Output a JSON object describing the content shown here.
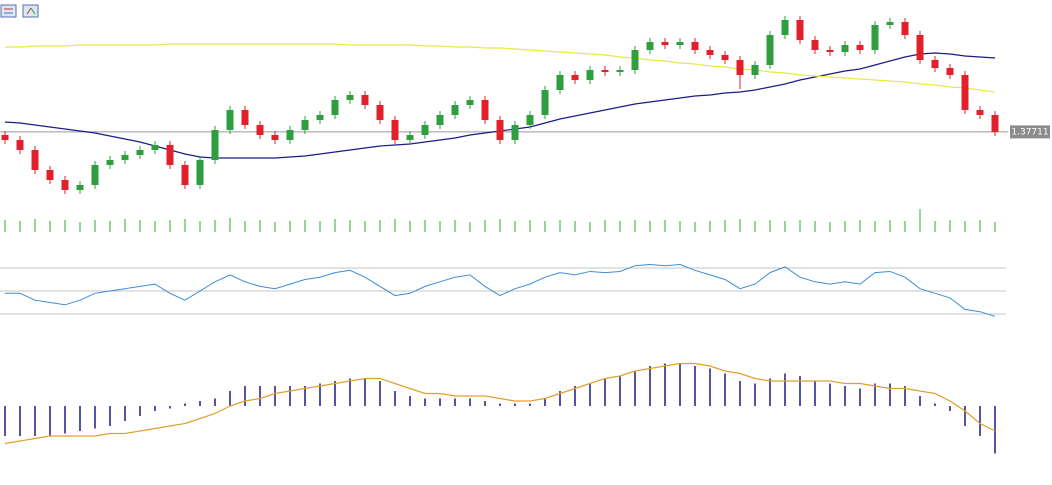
{
  "chart_data": {
    "type": "candlestick",
    "candles": [
      [
        1.3768,
        1.3772,
        1.3759,
        1.3763
      ],
      [
        1.3763,
        1.3767,
        1.3749,
        1.3753
      ],
      [
        1.3753,
        1.3757,
        1.3729,
        1.3733
      ],
      [
        1.3733,
        1.3737,
        1.3719,
        1.3723
      ],
      [
        1.3723,
        1.3727,
        1.3709,
        1.3713
      ],
      [
        1.3713,
        1.3722,
        1.3709,
        1.3718
      ],
      [
        1.3718,
        1.3742,
        1.3714,
        1.3738
      ],
      [
        1.3738,
        1.3747,
        1.3734,
        1.3743
      ],
      [
        1.3743,
        1.3752,
        1.3739,
        1.3748
      ],
      [
        1.3748,
        1.3757,
        1.3744,
        1.3753
      ],
      [
        1.3753,
        1.3762,
        1.3749,
        1.3758
      ],
      [
        1.3758,
        1.3762,
        1.3734,
        1.3738
      ],
      [
        1.3738,
        1.3742,
        1.3714,
        1.3718
      ],
      [
        1.3718,
        1.3747,
        1.3714,
        1.3743
      ],
      [
        1.3743,
        1.3777,
        1.3739,
        1.3773
      ],
      [
        1.3773,
        1.3797,
        1.3769,
        1.3793
      ],
      [
        1.3793,
        1.3797,
        1.3774,
        1.3778
      ],
      [
        1.3778,
        1.3782,
        1.3764,
        1.3768
      ],
      [
        1.3768,
        1.3772,
        1.3759,
        1.3763
      ],
      [
        1.3763,
        1.3777,
        1.3759,
        1.3773
      ],
      [
        1.3773,
        1.3787,
        1.3769,
        1.3783
      ],
      [
        1.3783,
        1.3792,
        1.3779,
        1.3788
      ],
      [
        1.3788,
        1.3807,
        1.3784,
        1.3803
      ],
      [
        1.3803,
        1.3812,
        1.3799,
        1.3808
      ],
      [
        1.3808,
        1.3812,
        1.3794,
        1.3798
      ],
      [
        1.3798,
        1.3802,
        1.3779,
        1.3783
      ],
      [
        1.3783,
        1.3787,
        1.3759,
        1.3763
      ],
      [
        1.3763,
        1.3772,
        1.3759,
        1.3768
      ],
      [
        1.3768,
        1.3782,
        1.3764,
        1.3778
      ],
      [
        1.3778,
        1.3792,
        1.3774,
        1.3788
      ],
      [
        1.3788,
        1.3802,
        1.3784,
        1.3798
      ],
      [
        1.3798,
        1.3807,
        1.3794,
        1.3803
      ],
      [
        1.3803,
        1.3807,
        1.3779,
        1.3783
      ],
      [
        1.3783,
        1.3787,
        1.3759,
        1.3763
      ],
      [
        1.3763,
        1.3782,
        1.3759,
        1.3778
      ],
      [
        1.3778,
        1.3792,
        1.3774,
        1.3788
      ],
      [
        1.3788,
        1.3817,
        1.3784,
        1.3813
      ],
      [
        1.3813,
        1.3832,
        1.3809,
        1.3828
      ],
      [
        1.3828,
        1.3832,
        1.3819,
        1.3823
      ],
      [
        1.3823,
        1.3837,
        1.3819,
        1.3833
      ],
      [
        1.3833,
        1.3837,
        1.3827,
        1.3831
      ],
      [
        1.3831,
        1.3837,
        1.3827,
        1.3833
      ],
      [
        1.3833,
        1.3857,
        1.3829,
        1.3853
      ],
      [
        1.3853,
        1.3865,
        1.3849,
        1.3861
      ],
      [
        1.3861,
        1.3865,
        1.3854,
        1.3858
      ],
      [
        1.3858,
        1.3865,
        1.3854,
        1.3861
      ],
      [
        1.3861,
        1.3865,
        1.3849,
        1.3853
      ],
      [
        1.3853,
        1.3857,
        1.3844,
        1.3848
      ],
      [
        1.3848,
        1.3852,
        1.3839,
        1.3843
      ],
      [
        1.3843,
        1.3847,
        1.3814,
        1.3828
      ],
      [
        1.3828,
        1.3842,
        1.3824,
        1.3838
      ],
      [
        1.3838,
        1.3872,
        1.3834,
        1.3868
      ],
      [
        1.3868,
        1.3887,
        1.3864,
        1.3883
      ],
      [
        1.3883,
        1.3887,
        1.3859,
        1.3863
      ],
      [
        1.3863,
        1.3867,
        1.3849,
        1.3853
      ],
      [
        1.3853,
        1.3857,
        1.3847,
        1.3851
      ],
      [
        1.3851,
        1.3862,
        1.3847,
        1.3858
      ],
      [
        1.3858,
        1.3862,
        1.3849,
        1.3853
      ],
      [
        1.3853,
        1.3882,
        1.3849,
        1.3878
      ],
      [
        1.3878,
        1.3885,
        1.3874,
        1.3881
      ],
      [
        1.3881,
        1.3885,
        1.3864,
        1.3868
      ],
      [
        1.3868,
        1.3872,
        1.3839,
        1.3843
      ],
      [
        1.3843,
        1.3847,
        1.3831,
        1.3835
      ],
      [
        1.3835,
        1.3839,
        1.3824,
        1.3828
      ],
      [
        1.3828,
        1.3832,
        1.3789,
        1.3793
      ],
      [
        1.3793,
        1.3797,
        1.3784,
        1.3788
      ],
      [
        1.3788,
        1.3792,
        1.3767,
        1.37711
      ]
    ],
    "ylim": [
      1.3698,
      1.3903
    ],
    "up_color": "#2e9e3e",
    "down_color": "#e0202a",
    "last_price": 1.37711,
    "series": [
      {
        "color": "#1b1b8a",
        "values": [
          1.3781,
          1.378,
          1.3778,
          1.3776,
          1.3774,
          1.3772,
          1.377,
          1.3767,
          1.3764,
          1.3761,
          1.3757,
          1.3753,
          1.3749,
          1.3746,
          1.3745,
          1.3745,
          1.3745,
          1.3745,
          1.3745,
          1.3746,
          1.3747,
          1.3749,
          1.3751,
          1.3753,
          1.3755,
          1.3757,
          1.3758,
          1.3759,
          1.3761,
          1.3763,
          1.3765,
          1.3768,
          1.377,
          1.3772,
          1.3774,
          1.3776,
          1.378,
          1.3784,
          1.3787,
          1.379,
          1.3793,
          1.3796,
          1.3799,
          1.3801,
          1.3803,
          1.3805,
          1.3807,
          1.3808,
          1.381,
          1.3811,
          1.3813,
          1.3816,
          1.3819,
          1.3823,
          1.3826,
          1.3829,
          1.3832,
          1.3834,
          1.3838,
          1.3842,
          1.3846,
          1.3849,
          1.385,
          1.3849,
          1.3847,
          1.3846,
          1.3845
        ]
      },
      {
        "color": "#e8e84a",
        "values": [
          1.3856,
          1.3856,
          1.3857,
          1.3857,
          1.3857,
          1.3858,
          1.3858,
          1.3858,
          1.3858,
          1.3858,
          1.3858,
          1.3859,
          1.3859,
          1.3859,
          1.3859,
          1.3859,
          1.3859,
          1.3859,
          1.3859,
          1.3859,
          1.3859,
          1.3859,
          1.3859,
          1.3858,
          1.3858,
          1.3858,
          1.3858,
          1.3858,
          1.3857,
          1.3857,
          1.3856,
          1.3856,
          1.3855,
          1.3855,
          1.3854,
          1.3853,
          1.3852,
          1.3851,
          1.385,
          1.3849,
          1.3848,
          1.3846,
          1.3845,
          1.3843,
          1.3842,
          1.384,
          1.3839,
          1.3837,
          1.3836,
          1.3834,
          1.3833,
          1.3831,
          1.383,
          1.3828,
          1.3827,
          1.3826,
          1.3825,
          1.3824,
          1.3823,
          1.3822,
          1.3821,
          1.3819,
          1.3818,
          1.3816,
          1.3815,
          1.3813,
          1.3811
        ]
      }
    ],
    "volume": {
      "type": "bar",
      "color": "#5cc05c",
      "ylim": [
        0,
        25
      ],
      "values": [
        12,
        11,
        13,
        11,
        12,
        10,
        12,
        11,
        13,
        12,
        11,
        12,
        13,
        11,
        12,
        14,
        11,
        12,
        10,
        11,
        12,
        11,
        13,
        12,
        11,
        12,
        13,
        11,
        12,
        11,
        12,
        10,
        12,
        13,
        11,
        12,
        11,
        12,
        11,
        10,
        12,
        11,
        12,
        11,
        12,
        11,
        10,
        11,
        12,
        13,
        11,
        12,
        11,
        12,
        11,
        10,
        11,
        12,
        11,
        12,
        11,
        23,
        11,
        12,
        11,
        12,
        10
      ]
    },
    "rsi": {
      "type": "line",
      "color": "#3a8ed6",
      "ylim": [
        20,
        80
      ],
      "levels": [
        30,
        50,
        70
      ],
      "values": [
        48,
        48,
        42,
        40,
        38,
        42,
        48,
        50,
        52,
        54,
        56,
        48,
        42,
        50,
        58,
        64,
        58,
        54,
        52,
        56,
        60,
        62,
        66,
        68,
        62,
        54,
        46,
        48,
        54,
        58,
        62,
        64,
        54,
        46,
        52,
        56,
        62,
        66,
        64,
        67,
        66,
        67,
        72,
        73,
        72,
        73,
        68,
        64,
        60,
        52,
        56,
        66,
        71,
        62,
        58,
        56,
        58,
        56,
        66,
        67,
        62,
        52,
        48,
        44,
        34,
        32,
        28
      ]
    },
    "macd": {
      "type": "bar",
      "color": "#1a1a80",
      "ylim": [
        -10,
        10
      ],
      "values": [
        -6,
        -6,
        -6,
        -6,
        -5.5,
        -5,
        -4.5,
        -4,
        -3,
        -2,
        -1,
        -0.5,
        0.5,
        1,
        1.5,
        3,
        4,
        4,
        4,
        4,
        4,
        4.5,
        5,
        5.5,
        5.5,
        5,
        3,
        2,
        1.5,
        1.5,
        1.5,
        1.5,
        1,
        0.5,
        0.5,
        0.5,
        1.5,
        3,
        4,
        4.5,
        5.5,
        6,
        7,
        8,
        8.5,
        8.5,
        8,
        7.5,
        6.5,
        5,
        4.5,
        5.5,
        6.5,
        6,
        5,
        4.5,
        4,
        3.5,
        4.5,
        4.5,
        4,
        2,
        0.5,
        -1,
        -4,
        -6,
        -9.5
      ],
      "signal": {
        "color": "#e0a030",
        "values": [
          -7.5,
          -7,
          -6.5,
          -6,
          -6,
          -6,
          -6,
          -5.5,
          -5.5,
          -5,
          -4.5,
          -4,
          -3.5,
          -2.5,
          -1.5,
          0,
          1,
          1.5,
          2.5,
          3,
          3.5,
          4,
          4.5,
          5,
          5.5,
          5.5,
          4.5,
          3.5,
          2.5,
          2.5,
          2,
          2,
          2,
          1.5,
          1,
          1,
          1.5,
          2.5,
          3.5,
          4.5,
          5.5,
          6,
          7,
          7.5,
          8,
          8.5,
          8.5,
          8,
          7,
          6.5,
          5.5,
          5,
          5,
          5,
          5,
          5,
          4.5,
          4.5,
          4,
          3.5,
          3.5,
          3,
          2.5,
          1,
          -1,
          -3.5,
          -5
        ]
      }
    }
  }
}
